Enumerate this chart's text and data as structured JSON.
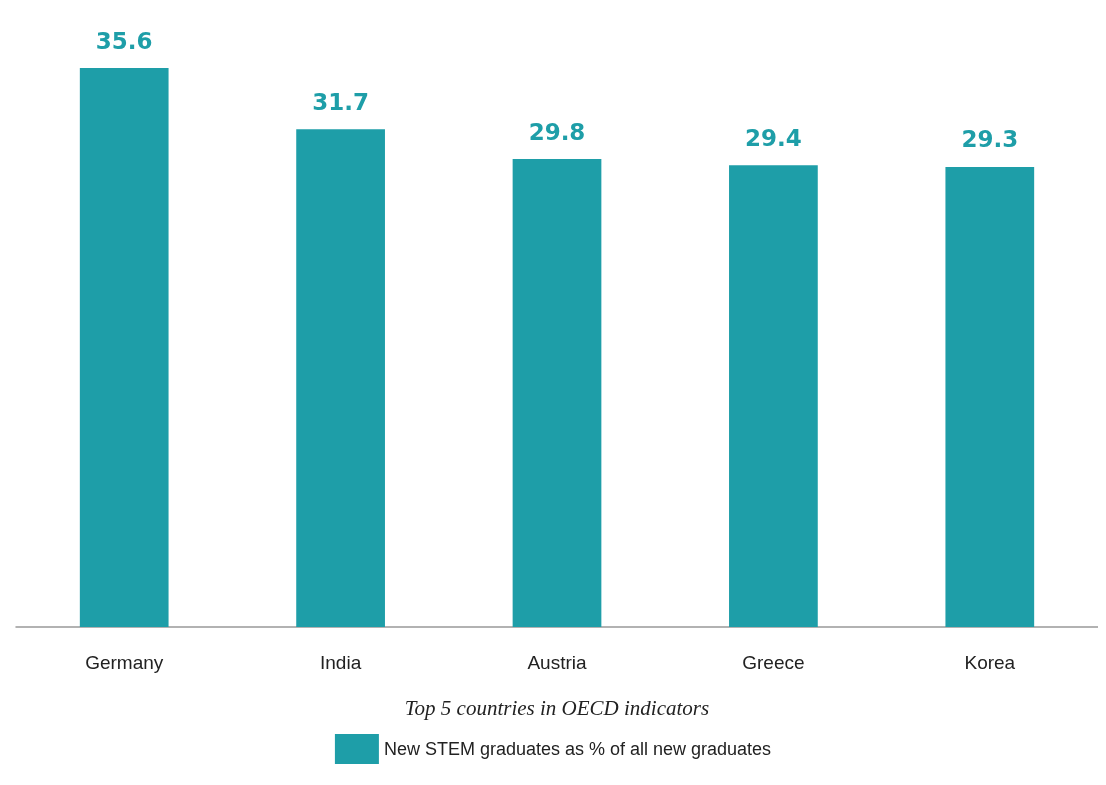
{
  "chart_data": {
    "type": "bar",
    "xlabel": "Top 5 countries in OECD indicators",
    "categories": [
      "Germany",
      "India",
      "Austria",
      "Greece",
      "Korea"
    ],
    "series": [
      {
        "name": "New STEM graduates as % of all new graduates",
        "color": "#1e9ea8",
        "values": [
          35.6,
          31.7,
          29.8,
          29.4,
          29.3
        ]
      }
    ],
    "data_labels": true,
    "legend": "bottom",
    "grid": false
  }
}
